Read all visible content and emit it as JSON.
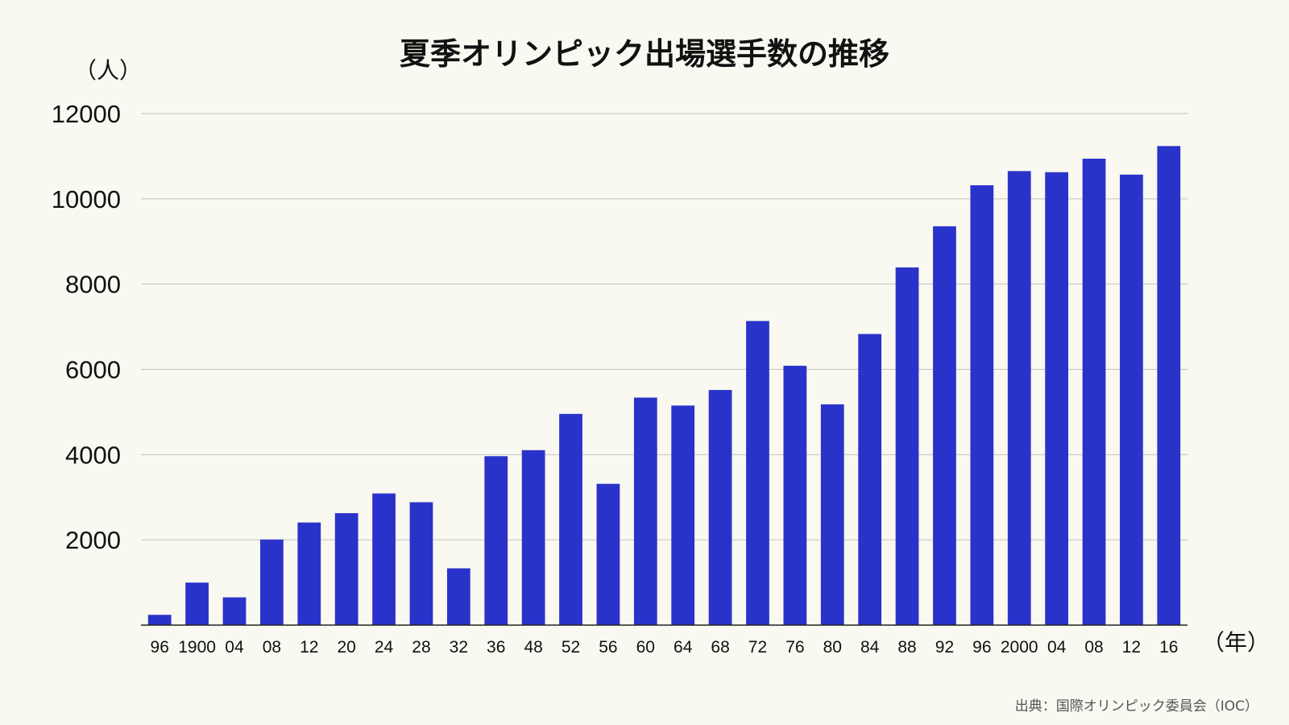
{
  "chart_data": {
    "type": "bar",
    "title": "夏季オリンピック出場選手数の推移",
    "ylabel": "（人）",
    "xlabel": "（年）",
    "source": "出典：国際オリンピック委員会（IOC）",
    "ylim": [
      0,
      12000
    ],
    "yticks": [
      2000,
      4000,
      6000,
      8000,
      10000,
      12000
    ],
    "grid": true,
    "categories": [
      "96",
      "1900",
      "04",
      "08",
      "12",
      "20",
      "24",
      "28",
      "32",
      "36",
      "48",
      "52",
      "56",
      "60",
      "64",
      "68",
      "72",
      "76",
      "80",
      "84",
      "88",
      "92",
      "96",
      "2000",
      "04",
      "08",
      "12",
      "16"
    ],
    "values": [
      241,
      997,
      651,
      2008,
      2407,
      2626,
      3089,
      2883,
      1332,
      3963,
      4104,
      4955,
      3314,
      5338,
      5151,
      5516,
      7134,
      6084,
      5179,
      6829,
      8391,
      9356,
      10318,
      10651,
      10625,
      10942,
      10568,
      11238
    ],
    "bar_color": "#2a33c9"
  }
}
